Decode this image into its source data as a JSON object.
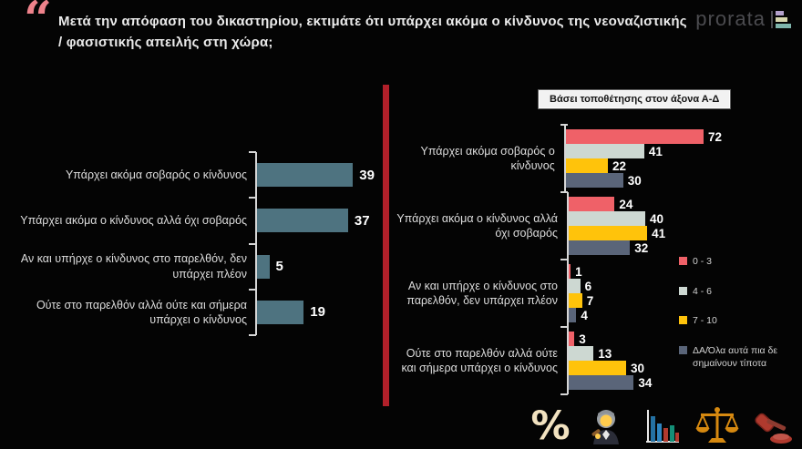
{
  "header": {
    "quote_mark": "“",
    "title": "Μετά την απόφαση του δικαστηρίου, εκτιμάτε ότι υπάρχει ακόμα ο κίνδυνος της νεοναζιστικής / φασιστικής απειλής στη χώρα;",
    "brand": "prorata"
  },
  "right_chart_header": "Βάσει τοποθέτησης στον άξονα Α-Δ",
  "chart_data": [
    {
      "type": "bar",
      "orientation": "horizontal",
      "title": "",
      "categories": [
        "Υπάρχει ακόμα σοβαρός ο κίνδυνος",
        "Υπάρχει ακόμα ο κίνδυνος αλλά όχι σοβαρός",
        "Αν και υπήρχε ο κίνδυνος στο παρελθόν, δεν υπάρχει πλέον",
        "Ούτε στο παρελθόν αλλά ούτε και σήμερα υπάρχει ο κίνδυνος"
      ],
      "values": [
        39,
        37,
        5,
        19
      ],
      "bar_color": "#4e7380",
      "value_labels": true,
      "xlim": [
        0,
        45
      ],
      "grid": false
    },
    {
      "type": "bar",
      "orientation": "horizontal",
      "grouped": true,
      "title": "Βάσει τοποθέτησης στον άξονα Α-Δ",
      "categories": [
        "Υπάρχει ακόμα σοβαρός ο κίνδυνος",
        "Υπάρχει ακόμα ο κίνδυνος αλλά όχι σοβαρός",
        "Αν και υπήρχε ο κίνδυνος στο παρελθόν, δεν υπάρχει πλέον",
        "Ούτε στο παρελθόν αλλά ούτε και σήμερα υπάρχει ο κίνδυνος"
      ],
      "series": [
        {
          "name": "0 - 3",
          "color": "#ef6168",
          "values": [
            72,
            24,
            1,
            3
          ]
        },
        {
          "name": "4 - 6",
          "color": "#cdd8d2",
          "values": [
            41,
            40,
            6,
            13
          ]
        },
        {
          "name": "7 - 10",
          "color": "#ffc30b",
          "values": [
            22,
            41,
            7,
            30
          ]
        },
        {
          "name": "ΔΑ/Όλα αυτά πια δε σημαίνουν τίποτα",
          "color": "#5a6579",
          "values": [
            30,
            32,
            4,
            34
          ]
        }
      ],
      "legend_position": "right",
      "value_labels": true,
      "xlim": [
        0,
        80
      ],
      "grid": false
    }
  ],
  "footer": {
    "percent_symbol": "%",
    "icons": [
      "percent-icon",
      "judge-icon",
      "bar-chart-icon",
      "scales-of-justice-icon",
      "gavel-icon"
    ]
  },
  "colors": {
    "background": "#040404",
    "accent_red_divider": "#b1202a",
    "left_bar": "#4e7380",
    "scale_0_3": "#ef6168",
    "scale_4_6": "#cdd8d2",
    "scale_7_10": "#ffc30b",
    "scale_da": "#5a6579",
    "quote_pink": "#ee828b"
  }
}
